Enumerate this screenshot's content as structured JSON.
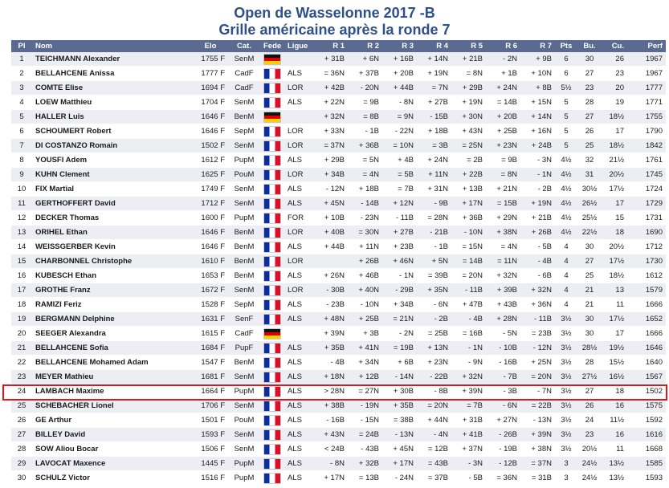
{
  "title_line1": "Open de Wasselonne 2017 -B",
  "title_line2": "Grille américaine après la ronde 7",
  "columns": [
    "Pl",
    "Nom",
    "Elo",
    "Cat.",
    "Fede",
    "Ligue",
    "R 1",
    "R 2",
    "R 3",
    "R 4",
    "R 5",
    "R 6",
    "R 7",
    "Pts",
    "Bu.",
    "Cu.",
    "Perf"
  ],
  "colors": {
    "header_bg": "#5a6a91",
    "title": "#2e4f8a",
    "stripe": "#eceef4",
    "highlight": "#e0161b"
  },
  "highlighted_place": "24",
  "rows": [
    {
      "pl": "1",
      "nom": "TEICHMANN Alexander",
      "elo": "1755 F",
      "cat": "SenM",
      "fed": "de",
      "ligue": "",
      "r": [
        "+ 31B",
        "+ 6N",
        "+ 16B",
        "+ 14N",
        "+ 21B",
        "- 2N",
        "+ 9B"
      ],
      "pts": "6",
      "bu": "30",
      "cu": "26",
      "perf": "1967"
    },
    {
      "pl": "2",
      "nom": "BELLAHCENE Anissa",
      "elo": "1777 F",
      "cat": "CadF",
      "fed": "fr",
      "ligue": "ALS",
      "r": [
        "= 36N",
        "+ 37B",
        "+ 20B",
        "+ 19N",
        "= 8N",
        "+ 1B",
        "+ 10N"
      ],
      "pts": "6",
      "bu": "27",
      "cu": "23",
      "perf": "1967"
    },
    {
      "pl": "3",
      "nom": "COMTE Elise",
      "elo": "1694 F",
      "cat": "CadF",
      "fed": "fr",
      "ligue": "LOR",
      "r": [
        "+ 42B",
        "- 20N",
        "+ 44B",
        "= 7N",
        "+ 29B",
        "+ 24N",
        "+ 8B"
      ],
      "pts": "5½",
      "bu": "23",
      "cu": "20",
      "perf": "1777"
    },
    {
      "pl": "4",
      "nom": "LOEW Matthieu",
      "elo": "1704 F",
      "cat": "SenM",
      "fed": "fr",
      "ligue": "ALS",
      "r": [
        "+ 22N",
        "= 9B",
        "- 8N",
        "+ 27B",
        "+ 19N",
        "= 14B",
        "+ 15N"
      ],
      "pts": "5",
      "bu": "28",
      "cu": "19",
      "perf": "1771"
    },
    {
      "pl": "5",
      "nom": "HALLER Luis",
      "elo": "1646 F",
      "cat": "BenM",
      "fed": "de",
      "ligue": "",
      "r": [
        "+ 32N",
        "= 8B",
        "= 9N",
        "- 15B",
        "+ 30N",
        "+ 20B",
        "+ 14N"
      ],
      "pts": "5",
      "bu": "27",
      "cu": "18½",
      "perf": "1755"
    },
    {
      "pl": "6",
      "nom": "SCHOUMERT Robert",
      "elo": "1646 F",
      "cat": "SepM",
      "fed": "fr",
      "ligue": "LOR",
      "r": [
        "+ 33N",
        "- 1B",
        "- 22N",
        "+ 18B",
        "+ 43N",
        "+ 25B",
        "+ 16N"
      ],
      "pts": "5",
      "bu": "26",
      "cu": "17",
      "perf": "1790"
    },
    {
      "pl": "7",
      "nom": "DI COSTANZO Romain",
      "elo": "1502 F",
      "cat": "SenM",
      "fed": "fr",
      "ligue": "LOR",
      "r": [
        "= 37N",
        "+ 36B",
        "= 10N",
        "= 3B",
        "= 25N",
        "+ 23N",
        "+ 24B"
      ],
      "pts": "5",
      "bu": "25",
      "cu": "18½",
      "perf": "1842"
    },
    {
      "pl": "8",
      "nom": "YOUSFI Adem",
      "elo": "1612 F",
      "cat": "PupM",
      "fed": "fr",
      "ligue": "ALS",
      "r": [
        "+ 29B",
        "= 5N",
        "+ 4B",
        "+ 24N",
        "= 2B",
        "= 9B",
        "- 3N"
      ],
      "pts": "4½",
      "bu": "32",
      "cu": "21½",
      "perf": "1761"
    },
    {
      "pl": "9",
      "nom": "KUHN Clement",
      "elo": "1625 F",
      "cat": "PouM",
      "fed": "fr",
      "ligue": "LOR",
      "r": [
        "+ 34B",
        "= 4N",
        "= 5B",
        "+ 11N",
        "+ 22B",
        "= 8N",
        "- 1N"
      ],
      "pts": "4½",
      "bu": "31",
      "cu": "20½",
      "perf": "1745"
    },
    {
      "pl": "10",
      "nom": "FIX Martial",
      "elo": "1749 F",
      "cat": "SenM",
      "fed": "fr",
      "ligue": "ALS",
      "r": [
        "- 12N",
        "+ 18B",
        "= 7B",
        "+ 31N",
        "+ 13B",
        "+ 21N",
        "- 2B"
      ],
      "pts": "4½",
      "bu": "30½",
      "cu": "17½",
      "perf": "1724"
    },
    {
      "pl": "11",
      "nom": "GERTHOFFERT David",
      "elo": "1712 F",
      "cat": "SenM",
      "fed": "fr",
      "ligue": "ALS",
      "r": [
        "+ 45N",
        "- 14B",
        "+ 12N",
        "- 9B",
        "+ 17N",
        "= 15B",
        "+ 19N"
      ],
      "pts": "4½",
      "bu": "26½",
      "cu": "17",
      "perf": "1729"
    },
    {
      "pl": "12",
      "nom": "DECKER Thomas",
      "elo": "1600 F",
      "cat": "PupM",
      "fed": "fr",
      "ligue": "FOR",
      "r": [
        "+ 10B",
        "- 23N",
        "- 11B",
        "= 28N",
        "+ 36B",
        "+ 29N",
        "+ 21B"
      ],
      "pts": "4½",
      "bu": "25½",
      "cu": "15",
      "perf": "1731"
    },
    {
      "pl": "13",
      "nom": "ORIHEL Ethan",
      "elo": "1646 F",
      "cat": "BenM",
      "fed": "fr",
      "ligue": "LOR",
      "r": [
        "+ 40B",
        "= 30N",
        "+ 27B",
        "- 21B",
        "- 10N",
        "+ 38N",
        "+ 26B"
      ],
      "pts": "4½",
      "bu": "22½",
      "cu": "18",
      "perf": "1690"
    },
    {
      "pl": "14",
      "nom": "WEISSGERBER Kevin",
      "elo": "1646 F",
      "cat": "BenM",
      "fed": "fr",
      "ligue": "ALS",
      "r": [
        "+ 44B",
        "+ 11N",
        "+ 23B",
        "- 1B",
        "= 15N",
        "= 4N",
        "- 5B"
      ],
      "pts": "4",
      "bu": "30",
      "cu": "20½",
      "perf": "1712"
    },
    {
      "pl": "15",
      "nom": "CHARBONNEL Christophe",
      "elo": "1610 F",
      "cat": "BenM",
      "fed": "fr",
      "ligue": "LOR",
      "r": [
        "",
        "+ 26B",
        "+ 46N",
        "+ 5N",
        "= 14B",
        "= 11N",
        "- 4B"
      ],
      "pts": "4",
      "bu": "27",
      "cu": "17½",
      "perf": "1730"
    },
    {
      "pl": "16",
      "nom": "KUBESCH Ethan",
      "elo": "1653 F",
      "cat": "BenM",
      "fed": "fr",
      "ligue": "ALS",
      "r": [
        "+ 26N",
        "+ 46B",
        "- 1N",
        "= 39B",
        "= 20N",
        "+ 32N",
        "- 6B"
      ],
      "pts": "4",
      "bu": "25",
      "cu": "18½",
      "perf": "1612"
    },
    {
      "pl": "17",
      "nom": "GROTHE Franz",
      "elo": "1672 F",
      "cat": "SenM",
      "fed": "fr",
      "ligue": "LOR",
      "r": [
        "- 30B",
        "+ 40N",
        "- 29B",
        "+ 35N",
        "- 11B",
        "+ 39B",
        "+ 32N"
      ],
      "pts": "4",
      "bu": "21",
      "cu": "13",
      "perf": "1579"
    },
    {
      "pl": "18",
      "nom": "RAMIZI Feriz",
      "elo": "1528 F",
      "cat": "SepM",
      "fed": "fr",
      "ligue": "ALS",
      "r": [
        "- 23B",
        "- 10N",
        "+ 34B",
        "- 6N",
        "+ 47B",
        "+ 43B",
        "+ 36N"
      ],
      "pts": "4",
      "bu": "21",
      "cu": "11",
      "perf": "1666"
    },
    {
      "pl": "19",
      "nom": "BERGMANN Delphine",
      "elo": "1631 F",
      "cat": "SenF",
      "fed": "fr",
      "ligue": "ALS",
      "r": [
        "+ 48N",
        "+ 25B",
        "= 21N",
        "- 2B",
        "- 4B",
        "+ 28N",
        "- 11B"
      ],
      "pts": "3½",
      "bu": "30",
      "cu": "17½",
      "perf": "1652"
    },
    {
      "pl": "20",
      "nom": "SEEGER Alexandra",
      "elo": "1615 F",
      "cat": "CadF",
      "fed": "de",
      "ligue": "",
      "r": [
        "+ 39N",
        "+ 3B",
        "- 2N",
        "= 25B",
        "= 16B",
        "- 5N",
        "= 23B"
      ],
      "pts": "3½",
      "bu": "30",
      "cu": "17",
      "perf": "1666"
    },
    {
      "pl": "21",
      "nom": "BELLAHCENE Sofia",
      "elo": "1684 F",
      "cat": "PupF",
      "fed": "fr",
      "ligue": "ALS",
      "r": [
        "+ 35B",
        "+ 41N",
        "= 19B",
        "+ 13N",
        "- 1N",
        "- 10B",
        "- 12N"
      ],
      "pts": "3½",
      "bu": "28½",
      "cu": "19½",
      "perf": "1646"
    },
    {
      "pl": "22",
      "nom": "BELLAHCENE Mohamed Adam",
      "elo": "1547 F",
      "cat": "BenM",
      "fed": "fr",
      "ligue": "ALS",
      "r": [
        "- 4B",
        "+ 34N",
        "+ 6B",
        "+ 23N",
        "- 9N",
        "- 16B",
        "+ 25N"
      ],
      "pts": "3½",
      "bu": "28",
      "cu": "15½",
      "perf": "1640"
    },
    {
      "pl": "23",
      "nom": "MEYER Mathieu",
      "elo": "1681 F",
      "cat": "SenM",
      "fed": "fr",
      "ligue": "ALS",
      "r": [
        "+ 18N",
        "+ 12B",
        "- 14N",
        "- 22B",
        "+ 32N",
        "- 7B",
        "= 20N"
      ],
      "pts": "3½",
      "bu": "27½",
      "cu": "16½",
      "perf": "1567"
    },
    {
      "pl": "24",
      "nom": "LAMBACH Maxime",
      "elo": "1664 F",
      "cat": "PupM",
      "fed": "fr",
      "ligue": "ALS",
      "r": [
        "> 28N",
        "= 27N",
        "+ 30B",
        "- 8B",
        "+ 39N",
        "- 3B",
        "- 7N"
      ],
      "pts": "3½",
      "bu": "27",
      "cu": "18",
      "perf": "1502"
    },
    {
      "pl": "25",
      "nom": "SCHEBACHER Lionel",
      "elo": "1706 F",
      "cat": "SenM",
      "fed": "fr",
      "ligue": "ALS",
      "r": [
        "+ 38B",
        "- 19N",
        "+ 35B",
        "= 20N",
        "= 7B",
        "- 6N",
        "= 22B"
      ],
      "pts": "3½",
      "bu": "26",
      "cu": "16",
      "perf": "1575"
    },
    {
      "pl": "26",
      "nom": "GE Arthur",
      "elo": "1501 F",
      "cat": "PouM",
      "fed": "fr",
      "ligue": "ALS",
      "r": [
        "- 16B",
        "- 15N",
        "= 38B",
        "+ 44N",
        "+ 31B",
        "+ 27N",
        "- 13N"
      ],
      "pts": "3½",
      "bu": "24",
      "cu": "11½",
      "perf": "1592"
    },
    {
      "pl": "27",
      "nom": "BILLEY David",
      "elo": "1593 F",
      "cat": "SenM",
      "fed": "fr",
      "ligue": "ALS",
      "r": [
        "+ 43N",
        "= 24B",
        "- 13N",
        "- 4N",
        "+ 41B",
        "- 26B",
        "+ 39N"
      ],
      "pts": "3½",
      "bu": "23",
      "cu": "16",
      "perf": "1616"
    },
    {
      "pl": "28",
      "nom": "SOW Aliou Bocar",
      "elo": "1506 F",
      "cat": "SenM",
      "fed": "fr",
      "ligue": "ALS",
      "r": [
        "< 24B",
        "- 43B",
        "+ 45N",
        "= 12B",
        "+ 37N",
        "- 19B",
        "+ 38N"
      ],
      "pts": "3½",
      "bu": "20½",
      "cu": "11",
      "perf": "1668"
    },
    {
      "pl": "29",
      "nom": "LAVOCAT Maxence",
      "elo": "1445 F",
      "cat": "PupM",
      "fed": "fr",
      "ligue": "ALS",
      "r": [
        "- 8N",
        "+ 32B",
        "+ 17N",
        "= 43B",
        "- 3N",
        "- 12B",
        "= 37N"
      ],
      "pts": "3",
      "bu": "24½",
      "cu": "13½",
      "perf": "1585"
    },
    {
      "pl": "30",
      "nom": "SCHULZ Victor",
      "elo": "1516 F",
      "cat": "PupM",
      "fed": "fr",
      "ligue": "ALS",
      "r": [
        "+ 17N",
        "= 13B",
        "- 24N",
        "= 37B",
        "- 5B",
        "= 36N",
        "= 31B"
      ],
      "pts": "3",
      "bu": "24½",
      "cu": "13½",
      "perf": "1593"
    }
  ]
}
